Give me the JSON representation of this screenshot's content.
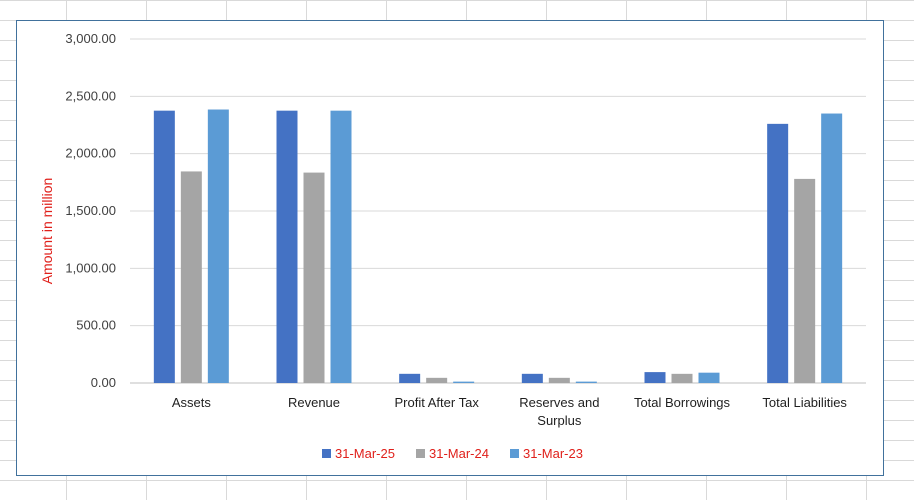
{
  "colors": {
    "series": [
      "#4472c4",
      "#a5a5a5",
      "#5b9bd5"
    ],
    "ylabel": "#e0201b",
    "legend_text": "#e0201b",
    "frame_border": "#41719c"
  },
  "chart_data": {
    "type": "bar",
    "title": "",
    "xlabel": "",
    "ylabel": "Amount in million",
    "ylim": [
      0,
      3000
    ],
    "yticks": [
      "0.00",
      "500.00",
      "1,000.00",
      "1,500.00",
      "2,000.00",
      "2,500.00",
      "3,000.00"
    ],
    "grid": true,
    "legend_position": "bottom",
    "categories": [
      [
        "Assets"
      ],
      [
        "Revenue"
      ],
      [
        "Profit After Tax"
      ],
      [
        "Reserves and",
        "Surplus"
      ],
      [
        "Total Borrowings"
      ],
      [
        "Total Liabilities"
      ]
    ],
    "series": [
      {
        "name": "31-Mar-25",
        "values": [
          2375,
          2375,
          80,
          80,
          95,
          2260
        ]
      },
      {
        "name": "31-Mar-24",
        "values": [
          1845,
          1835,
          45,
          45,
          80,
          1780
        ]
      },
      {
        "name": "31-Mar-23",
        "values": [
          2385,
          2375,
          12,
          12,
          90,
          2350
        ]
      }
    ]
  }
}
